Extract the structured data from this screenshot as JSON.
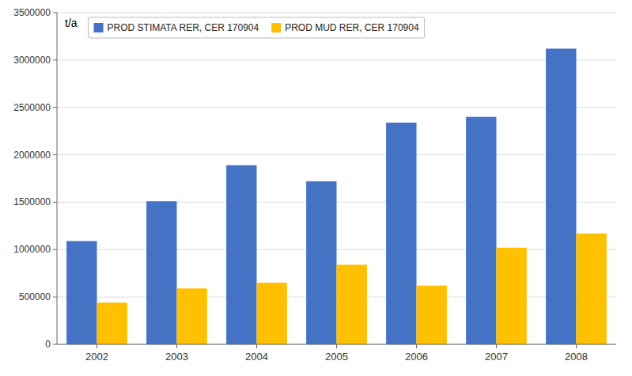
{
  "chart_data": {
    "type": "bar",
    "categories": [
      "2002",
      "2003",
      "2004",
      "2005",
      "2006",
      "2007",
      "2008"
    ],
    "series": [
      {
        "name": "PROD STIMATA RER, CER 170904",
        "color": "#4472C4",
        "values": [
          1090000,
          1510000,
          1890000,
          1720000,
          2340000,
          2400000,
          3120000
        ]
      },
      {
        "name": "PROD MUD RER, CER 170904",
        "color": "#FFC000",
        "values": [
          440000,
          590000,
          650000,
          840000,
          620000,
          1020000,
          1170000
        ]
      }
    ],
    "annotations": [
      "t/a"
    ],
    "ylim": [
      0,
      3500000
    ],
    "yticks": [
      0,
      500000,
      1000000,
      1500000,
      2000000,
      2500000,
      3000000,
      3500000
    ],
    "grid": true,
    "legend": "top-left"
  }
}
